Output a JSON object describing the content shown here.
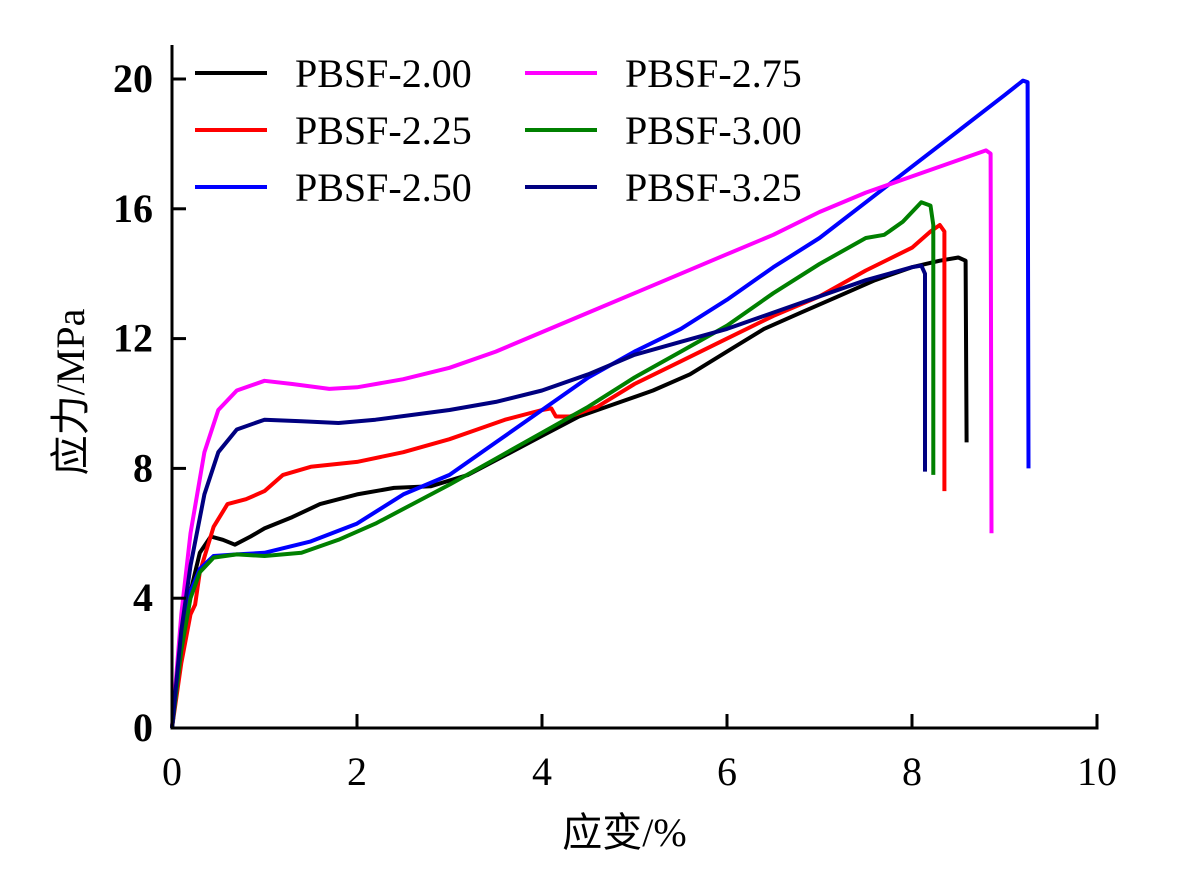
{
  "chart_data": {
    "type": "line",
    "title": "",
    "xlabel": "应变/%",
    "ylabel": "应力/MPa",
    "xlim": [
      0,
      10
    ],
    "ylim": [
      0,
      21
    ],
    "xticks": [
      "0",
      "2",
      "4",
      "6",
      "8",
      "10"
    ],
    "yticks": [
      "0",
      "4",
      "8",
      "12",
      "16",
      "20"
    ],
    "legend": "top-left",
    "grid": false,
    "series": [
      {
        "name": "PBSF-2.00",
        "color": "#000000",
        "points": [
          [
            0,
            0
          ],
          [
            0.1,
            2.5
          ],
          [
            0.2,
            4.2
          ],
          [
            0.3,
            5.4
          ],
          [
            0.42,
            5.9
          ],
          [
            0.55,
            5.8
          ],
          [
            0.68,
            5.65
          ],
          [
            0.85,
            5.9
          ],
          [
            1.0,
            6.15
          ],
          [
            1.3,
            6.5
          ],
          [
            1.6,
            6.9
          ],
          [
            2.0,
            7.2
          ],
          [
            2.4,
            7.4
          ],
          [
            2.8,
            7.45
          ],
          [
            3.2,
            7.8
          ],
          [
            3.6,
            8.4
          ],
          [
            4.0,
            9.0
          ],
          [
            4.4,
            9.6
          ],
          [
            4.8,
            10.0
          ],
          [
            5.2,
            10.4
          ],
          [
            5.6,
            10.9
          ],
          [
            6.0,
            11.6
          ],
          [
            6.4,
            12.3
          ],
          [
            6.8,
            12.8
          ],
          [
            7.2,
            13.3
          ],
          [
            7.6,
            13.8
          ],
          [
            8.0,
            14.2
          ],
          [
            8.3,
            14.4
          ],
          [
            8.5,
            14.5
          ],
          [
            8.58,
            14.4
          ],
          [
            8.59,
            8.8
          ]
        ]
      },
      {
        "name": "PBSF-2.25",
        "color": "#ff0000",
        "points": [
          [
            0,
            0
          ],
          [
            0.1,
            2.0
          ],
          [
            0.2,
            3.5
          ],
          [
            0.25,
            3.8
          ],
          [
            0.3,
            4.8
          ],
          [
            0.45,
            6.2
          ],
          [
            0.6,
            6.9
          ],
          [
            0.8,
            7.05
          ],
          [
            1.0,
            7.3
          ],
          [
            1.2,
            7.8
          ],
          [
            1.5,
            8.05
          ],
          [
            2.0,
            8.2
          ],
          [
            2.5,
            8.5
          ],
          [
            3.0,
            8.9
          ],
          [
            3.3,
            9.2
          ],
          [
            3.6,
            9.5
          ],
          [
            4.0,
            9.8
          ],
          [
            4.1,
            9.85
          ],
          [
            4.15,
            9.6
          ],
          [
            4.3,
            9.6
          ],
          [
            4.6,
            9.9
          ],
          [
            5.0,
            10.6
          ],
          [
            5.5,
            11.3
          ],
          [
            6.0,
            12.0
          ],
          [
            6.5,
            12.7
          ],
          [
            7.0,
            13.3
          ],
          [
            7.5,
            14.1
          ],
          [
            8.0,
            14.8
          ],
          [
            8.2,
            15.3
          ],
          [
            8.3,
            15.5
          ],
          [
            8.35,
            15.3
          ],
          [
            8.35,
            7.3
          ]
        ]
      },
      {
        "name": "PBSF-2.50",
        "color": "#0000ff",
        "points": [
          [
            0,
            0
          ],
          [
            0.1,
            2.6
          ],
          [
            0.2,
            4.2
          ],
          [
            0.3,
            4.9
          ],
          [
            0.45,
            5.3
          ],
          [
            0.7,
            5.35
          ],
          [
            1.0,
            5.4
          ],
          [
            1.5,
            5.75
          ],
          [
            2.0,
            6.3
          ],
          [
            2.5,
            7.2
          ],
          [
            3.0,
            7.8
          ],
          [
            3.5,
            8.8
          ],
          [
            4.0,
            9.8
          ],
          [
            4.5,
            10.8
          ],
          [
            5.0,
            11.6
          ],
          [
            5.5,
            12.3
          ],
          [
            6.0,
            13.2
          ],
          [
            6.5,
            14.2
          ],
          [
            7.0,
            15.1
          ],
          [
            7.5,
            16.2
          ],
          [
            8.0,
            17.3
          ],
          [
            8.5,
            18.4
          ],
          [
            9.0,
            19.5
          ],
          [
            9.2,
            19.95
          ],
          [
            9.25,
            19.9
          ],
          [
            9.26,
            8.0
          ]
        ]
      },
      {
        "name": "PBSF-2.75",
        "color": "#ff00ff",
        "points": [
          [
            0,
            0
          ],
          [
            0.1,
            3.5
          ],
          [
            0.2,
            6.0
          ],
          [
            0.35,
            8.5
          ],
          [
            0.5,
            9.8
          ],
          [
            0.7,
            10.4
          ],
          [
            1.0,
            10.7
          ],
          [
            1.3,
            10.6
          ],
          [
            1.7,
            10.45
          ],
          [
            2.0,
            10.5
          ],
          [
            2.5,
            10.75
          ],
          [
            3.0,
            11.1
          ],
          [
            3.5,
            11.6
          ],
          [
            4.0,
            12.2
          ],
          [
            4.5,
            12.8
          ],
          [
            5.0,
            13.4
          ],
          [
            5.5,
            14.0
          ],
          [
            6.0,
            14.6
          ],
          [
            6.5,
            15.2
          ],
          [
            7.0,
            15.9
          ],
          [
            7.5,
            16.5
          ],
          [
            8.0,
            17.0
          ],
          [
            8.5,
            17.5
          ],
          [
            8.8,
            17.8
          ],
          [
            8.85,
            17.7
          ],
          [
            8.86,
            6.0
          ]
        ]
      },
      {
        "name": "PBSF-3.00",
        "color": "#008000",
        "points": [
          [
            0,
            0
          ],
          [
            0.1,
            2.4
          ],
          [
            0.2,
            4.0
          ],
          [
            0.3,
            4.8
          ],
          [
            0.45,
            5.25
          ],
          [
            0.7,
            5.35
          ],
          [
            1.0,
            5.3
          ],
          [
            1.4,
            5.4
          ],
          [
            1.8,
            5.8
          ],
          [
            2.2,
            6.3
          ],
          [
            2.6,
            6.9
          ],
          [
            3.0,
            7.5
          ],
          [
            3.5,
            8.3
          ],
          [
            4.0,
            9.1
          ],
          [
            4.5,
            9.9
          ],
          [
            5.0,
            10.8
          ],
          [
            5.5,
            11.6
          ],
          [
            6.0,
            12.4
          ],
          [
            6.5,
            13.4
          ],
          [
            7.0,
            14.3
          ],
          [
            7.5,
            15.1
          ],
          [
            7.7,
            15.2
          ],
          [
            7.9,
            15.6
          ],
          [
            8.1,
            16.2
          ],
          [
            8.2,
            16.1
          ],
          [
            8.23,
            15.5
          ],
          [
            8.23,
            7.8
          ]
        ]
      },
      {
        "name": "PBSF-3.25",
        "color": "#000080",
        "points": [
          [
            0,
            0
          ],
          [
            0.1,
            3.0
          ],
          [
            0.2,
            5.0
          ],
          [
            0.35,
            7.2
          ],
          [
            0.5,
            8.5
          ],
          [
            0.7,
            9.2
          ],
          [
            1.0,
            9.5
          ],
          [
            1.4,
            9.45
          ],
          [
            1.8,
            9.4
          ],
          [
            2.2,
            9.5
          ],
          [
            2.6,
            9.65
          ],
          [
            3.0,
            9.8
          ],
          [
            3.5,
            10.05
          ],
          [
            4.0,
            10.4
          ],
          [
            4.5,
            10.9
          ],
          [
            5.0,
            11.5
          ],
          [
            5.5,
            11.9
          ],
          [
            6.0,
            12.3
          ],
          [
            6.5,
            12.8
          ],
          [
            7.0,
            13.3
          ],
          [
            7.5,
            13.8
          ],
          [
            8.0,
            14.2
          ],
          [
            8.1,
            14.25
          ],
          [
            8.14,
            14.0
          ],
          [
            8.14,
            7.9
          ]
        ]
      }
    ]
  }
}
